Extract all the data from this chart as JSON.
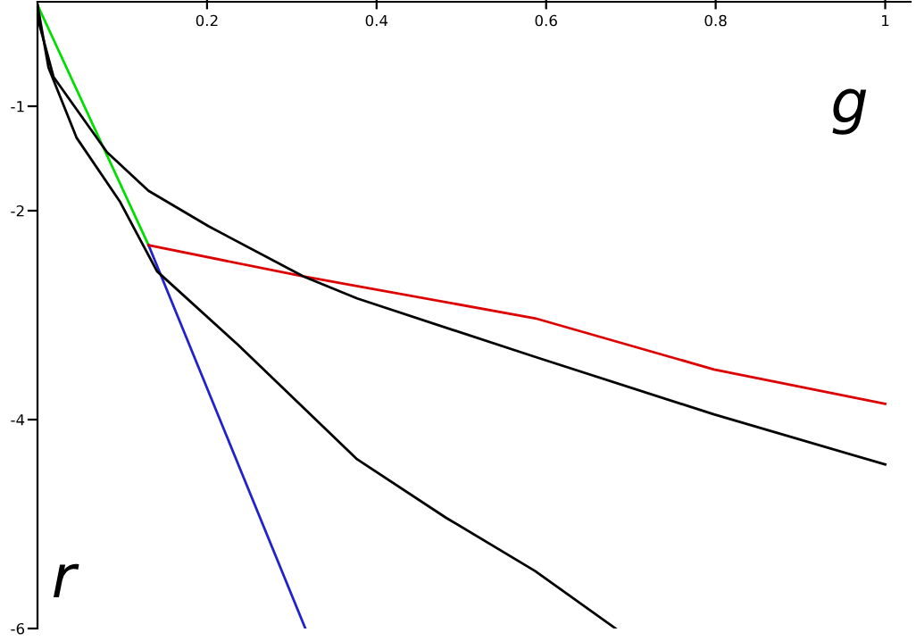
{
  "chart_data": {
    "type": "line",
    "xlabel": "g",
    "ylabel": "r",
    "xlim": [
      0,
      1.03
    ],
    "ylim": [
      -6,
      0
    ],
    "xticks": [
      0.2,
      0.4,
      0.6,
      0.8,
      1
    ],
    "yticks": [
      -1,
      -2,
      -4,
      -6
    ],
    "grid": false,
    "marker": "none",
    "line_style": "solid",
    "series": [
      {
        "color": "#00dd00",
        "x": [
          0,
          0.131
        ],
        "values": [
          -0.03,
          -2.33
        ]
      },
      {
        "color": "#2222cc",
        "x": [
          0.131,
          0.316
        ],
        "values": [
          -2.33,
          -6.0
        ]
      },
      {
        "color": "#dd0000",
        "x": [
          0.131,
          0.314,
          0.587,
          0.798,
          1.0
        ],
        "values": [
          -2.33,
          -2.63,
          -3.03,
          -3.52,
          -3.85
        ]
      },
      {
        "color": "#000000",
        "x": [
          0,
          0.002,
          0.019,
          0.082,
          0.131,
          0.202,
          0.314,
          0.377,
          0.587,
          0.798,
          1.0
        ],
        "values": [
          -0.03,
          -0.21,
          -0.72,
          -1.44,
          -1.81,
          -2.15,
          -2.63,
          -2.84,
          -3.4,
          -3.95,
          -4.43
        ]
      },
      {
        "color": "#000000",
        "x": [
          0,
          0.013,
          0.046,
          0.097,
          0.141,
          0.236,
          0.377,
          0.482,
          0.587,
          0.682
        ],
        "values": [
          -0.03,
          -0.63,
          -1.3,
          -1.91,
          -2.58,
          -3.28,
          -4.38,
          -4.94,
          -5.45,
          -6.0
        ]
      }
    ]
  }
}
